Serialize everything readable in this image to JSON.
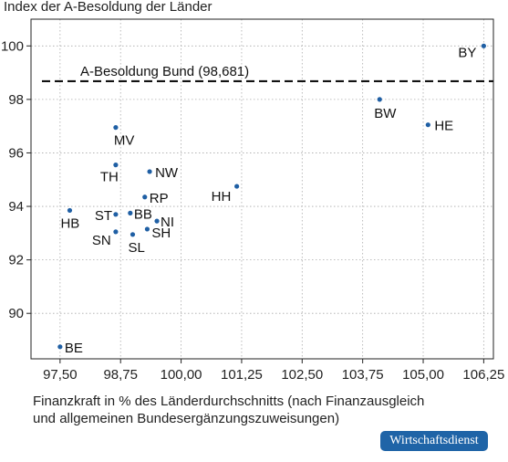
{
  "chart_data": {
    "type": "scatter",
    "ylabel": "Index der A-Besoldung der Länder",
    "xlabel_lines": [
      "Finanzkraft in % des Länderdurchschnitts (nach Finanzausgleich",
      "und allgemeinen Bundesergänzungszuweisungen)"
    ],
    "xlim": [
      96.9,
      106.45
    ],
    "ylim": [
      88.3,
      101.0
    ],
    "x_ticks": [
      97.5,
      98.75,
      100.0,
      101.25,
      102.5,
      103.75,
      105.0,
      106.25
    ],
    "x_tick_labels": [
      "97,50",
      "98,75",
      "100,00",
      "101,25",
      "102,50",
      "103,75",
      "105,00",
      "106,25"
    ],
    "y_ticks": [
      90,
      92,
      94,
      96,
      98,
      100
    ],
    "y_tick_labels": [
      "90",
      "92",
      "94",
      "96",
      "98",
      "100"
    ],
    "grid": true,
    "reference_line": {
      "value": 98.681,
      "label": "A-Besoldung Bund (98,681)"
    },
    "points": [
      {
        "label": "BY",
        "x": 106.25,
        "y": 100.0
      },
      {
        "label": "BW",
        "x": 104.1,
        "y": 98.0
      },
      {
        "label": "HE",
        "x": 105.1,
        "y": 97.05
      },
      {
        "label": "MV",
        "x": 98.65,
        "y": 96.95
      },
      {
        "label": "TH",
        "x": 98.65,
        "y": 95.55
      },
      {
        "label": "NW",
        "x": 99.35,
        "y": 95.3
      },
      {
        "label": "HH",
        "x": 101.15,
        "y": 94.75
      },
      {
        "label": "RP",
        "x": 99.25,
        "y": 94.35
      },
      {
        "label": "HB",
        "x": 97.7,
        "y": 93.85
      },
      {
        "label": "ST",
        "x": 98.65,
        "y": 93.7
      },
      {
        "label": "BB",
        "x": 98.95,
        "y": 93.75
      },
      {
        "label": "NI",
        "x": 99.5,
        "y": 93.45
      },
      {
        "label": "SH",
        "x": 99.3,
        "y": 93.15
      },
      {
        "label": "SN",
        "x": 98.65,
        "y": 93.05
      },
      {
        "label": "SL",
        "x": 99.0,
        "y": 92.95
      },
      {
        "label": "BE",
        "x": 97.5,
        "y": 88.75
      }
    ],
    "point_color": "#1f5fa4"
  },
  "brand": {
    "name": "Wirtschaftsdienst"
  }
}
